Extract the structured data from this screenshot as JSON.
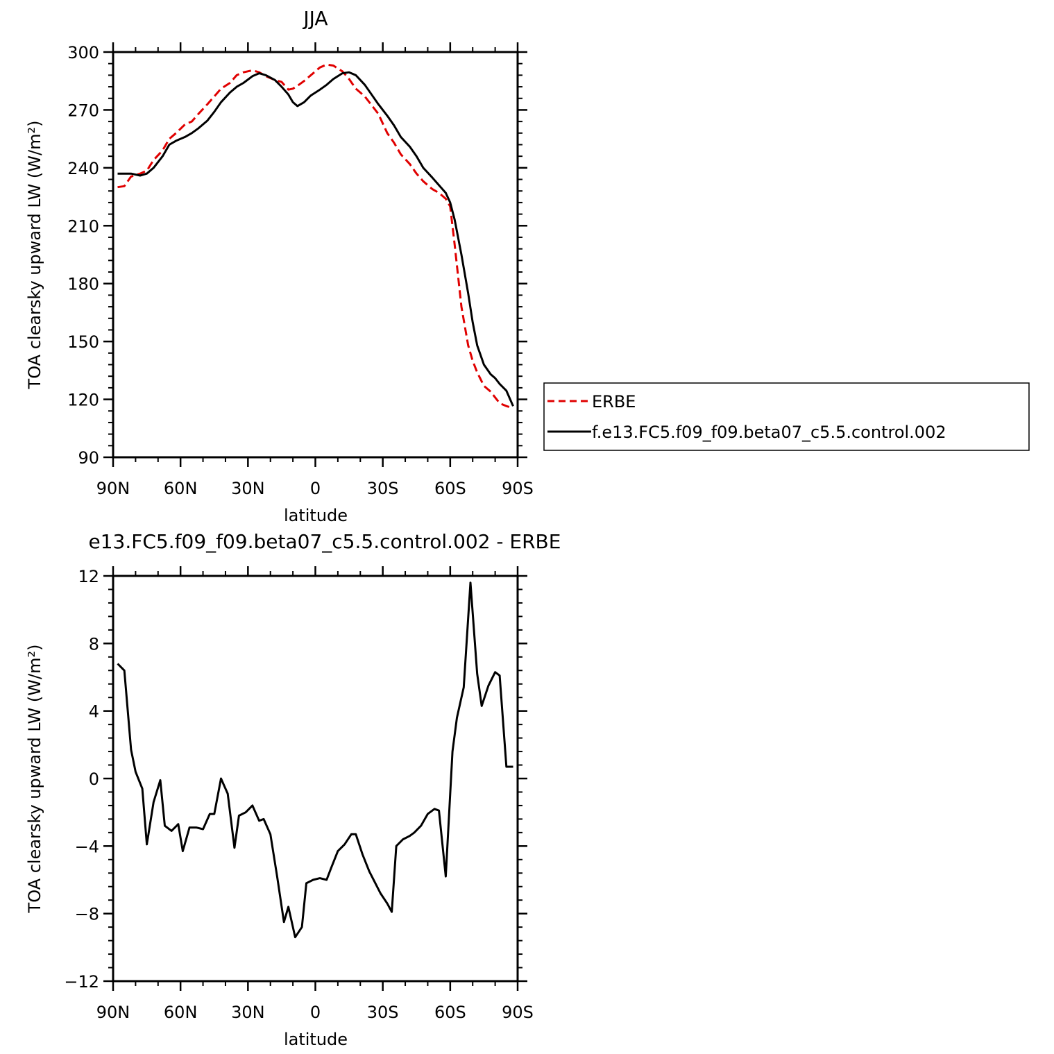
{
  "chart_data": [
    {
      "type": "line",
      "title": "JJA",
      "xlabel": "latitude",
      "ylabel": "TOA clearsky upward LW (W/m²)",
      "xlim": [
        90,
        -90
      ],
      "ylim": [
        90,
        300
      ],
      "xticks": [
        90,
        60,
        30,
        0,
        -30,
        -60,
        -90
      ],
      "xtick_labels": [
        "90N",
        "60N",
        "30N",
        "0",
        "30S",
        "60S",
        "90S"
      ],
      "yticks": [
        90,
        120,
        150,
        180,
        210,
        240,
        270,
        300
      ],
      "ytick_labels": [
        "90",
        "120",
        "150",
        "180",
        "210",
        "240",
        "270",
        "300"
      ],
      "legend_position": "right",
      "series": [
        {
          "name": "ERBE",
          "color": "#e00000",
          "dash": true,
          "x": [
            88,
            85,
            82,
            78,
            75,
            72,
            68,
            65,
            62,
            58,
            55,
            52,
            48,
            45,
            42,
            38,
            35,
            32,
            28,
            25,
            22,
            18,
            15,
            12,
            10,
            8,
            5,
            2,
            -2,
            -5,
            -8,
            -12,
            -15,
            -18,
            -22,
            -25,
            -28,
            -32,
            -35,
            -38,
            -42,
            -45,
            -48,
            -52,
            -55,
            -58,
            -60,
            -62,
            -65,
            -68,
            -70,
            -72,
            -75,
            -78,
            -80,
            -82,
            -85,
            -88
          ],
          "y": [
            230,
            230.5,
            235.5,
            237,
            238.5,
            244,
            249,
            255,
            258,
            262.5,
            264,
            268,
            273,
            277,
            281,
            284,
            288,
            289.5,
            290.5,
            289.5,
            287.5,
            285.5,
            284.5,
            280.5,
            281,
            282.5,
            285,
            288,
            292,
            293.5,
            293,
            290,
            286,
            281,
            277,
            272.5,
            268,
            258,
            253,
            247,
            242,
            237,
            233,
            229,
            227,
            224,
            220,
            200,
            168,
            148,
            140,
            134,
            127,
            124,
            121,
            118,
            116.5,
            115.5
          ]
        },
        {
          "name": "f.e13.FC5.f09_f09.beta07_c5.5.control.002",
          "color": "#000000",
          "dash": false,
          "x": [
            88,
            85,
            82,
            78,
            75,
            72,
            68,
            65,
            62,
            58,
            55,
            52,
            48,
            45,
            42,
            38,
            35,
            32,
            28,
            25,
            22,
            18,
            15,
            12,
            10,
            8,
            5,
            2,
            -2,
            -5,
            -8,
            -12,
            -15,
            -18,
            -22,
            -25,
            -28,
            -32,
            -35,
            -38,
            -42,
            -45,
            -48,
            -52,
            -55,
            -58,
            -60,
            -62,
            -65,
            -68,
            -70,
            -72,
            -75,
            -78,
            -80,
            -82,
            -85,
            -88
          ],
          "y": [
            237,
            237,
            237,
            236,
            237,
            240,
            246,
            252,
            254,
            256,
            258,
            260.5,
            264.5,
            269,
            274,
            279,
            282,
            284,
            287.5,
            289,
            288,
            285.5,
            282,
            278,
            274,
            272,
            274,
            277.5,
            280.5,
            283,
            286,
            289,
            289.5,
            288,
            283,
            278,
            273,
            267,
            262,
            256,
            251,
            246,
            240,
            235,
            231,
            227,
            222,
            213,
            195,
            175,
            160,
            148,
            138,
            133,
            131,
            128,
            124.5,
            116.5
          ]
        }
      ]
    },
    {
      "type": "line",
      "title": "e13.FC5.f09_f09.beta07_c5.5.control.002 - ERBE",
      "xlabel": "latitude",
      "ylabel": "TOA clearsky upward LW (W/m²)",
      "xlim": [
        90,
        -90
      ],
      "ylim": [
        -12,
        12
      ],
      "xticks": [
        90,
        60,
        30,
        0,
        -30,
        -60,
        -90
      ],
      "xtick_labels": [
        "90N",
        "60N",
        "30N",
        "0",
        "30S",
        "60S",
        "90S"
      ],
      "yticks": [
        -12,
        -8,
        -4,
        0,
        4,
        8,
        12
      ],
      "ytick_labels": [
        "−12",
        "−8",
        "−4",
        "0",
        "4",
        "8",
        "12"
      ],
      "series": [
        {
          "color": "#000000",
          "dash": false,
          "x": [
            88,
            85,
            82,
            80,
            77,
            75,
            72,
            69,
            67,
            64,
            61,
            59,
            56,
            53,
            50,
            47,
            45,
            42,
            39,
            36,
            34,
            31,
            28,
            25,
            23,
            20,
            17,
            14,
            12,
            9,
            6,
            4,
            1,
            -2,
            -5,
            -7,
            -10,
            -13,
            -16,
            -18,
            -21,
            -24,
            -29,
            -32,
            -34,
            -36,
            -39,
            -42,
            -44,
            -47,
            -50,
            -53,
            -55,
            -58,
            -61,
            -63,
            -66,
            -69,
            -72,
            -74,
            -77,
            -80,
            -82,
            -85,
            -88
          ],
          "y": [
            6.8,
            6.4,
            1.7,
            0.4,
            -0.6,
            -3.9,
            -1.4,
            -0.1,
            -2.8,
            -3.1,
            -2.7,
            -4.3,
            -2.9,
            -2.9,
            -3.0,
            -2.1,
            -2.1,
            0.0,
            -0.9,
            -4.1,
            -2.2,
            -2.0,
            -1.6,
            -2.5,
            -2.4,
            -3.3,
            -5.8,
            -8.5,
            -7.6,
            -9.4,
            -8.8,
            -6.2,
            -6.0,
            -5.9,
            -6.0,
            -5.3,
            -4.3,
            -3.9,
            -3.3,
            -3.3,
            -4.5,
            -5.5,
            -6.8,
            -7.4,
            -7.9,
            -4.0,
            -3.6,
            -3.4,
            -3.2,
            -2.8,
            -2.1,
            -1.8,
            -1.9,
            -5.8,
            1.6,
            3.6,
            5.4,
            11.6,
            6.2,
            4.3,
            5.5,
            6.3,
            6.1,
            0.7,
            0.7
          ]
        }
      ]
    }
  ]
}
